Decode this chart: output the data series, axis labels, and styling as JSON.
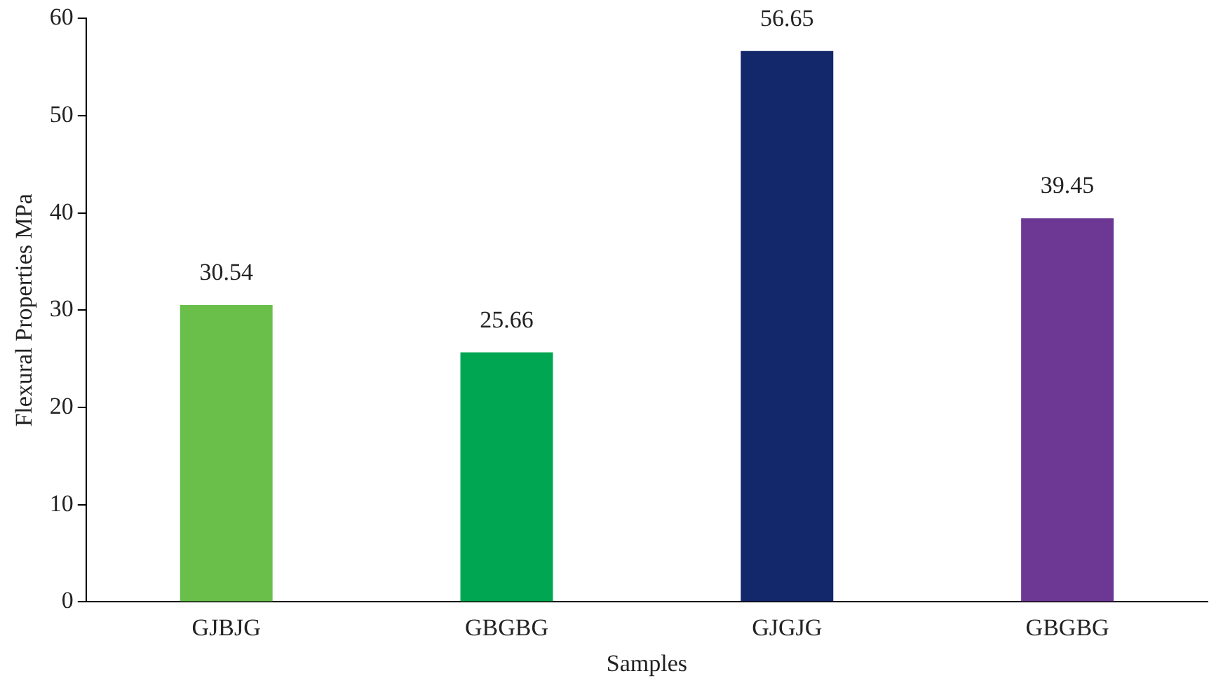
{
  "chart_data": {
    "type": "bar",
    "xlabel": "Samples",
    "ylabel": "Flexural Properties MPa",
    "categories": [
      "GJBJG",
      "GBGBG",
      "GJGJG",
      "GBGBG"
    ],
    "values": [
      30.54,
      25.66,
      56.65,
      39.45
    ],
    "colors": [
      "#6abf4b",
      "#00a651",
      "#13286a",
      "#6d3894"
    ],
    "ylim": [
      0,
      60
    ],
    "yticks": [
      0,
      10,
      20,
      30,
      40,
      50,
      60
    ],
    "grid": false,
    "legend": false,
    "data_labels": true
  }
}
